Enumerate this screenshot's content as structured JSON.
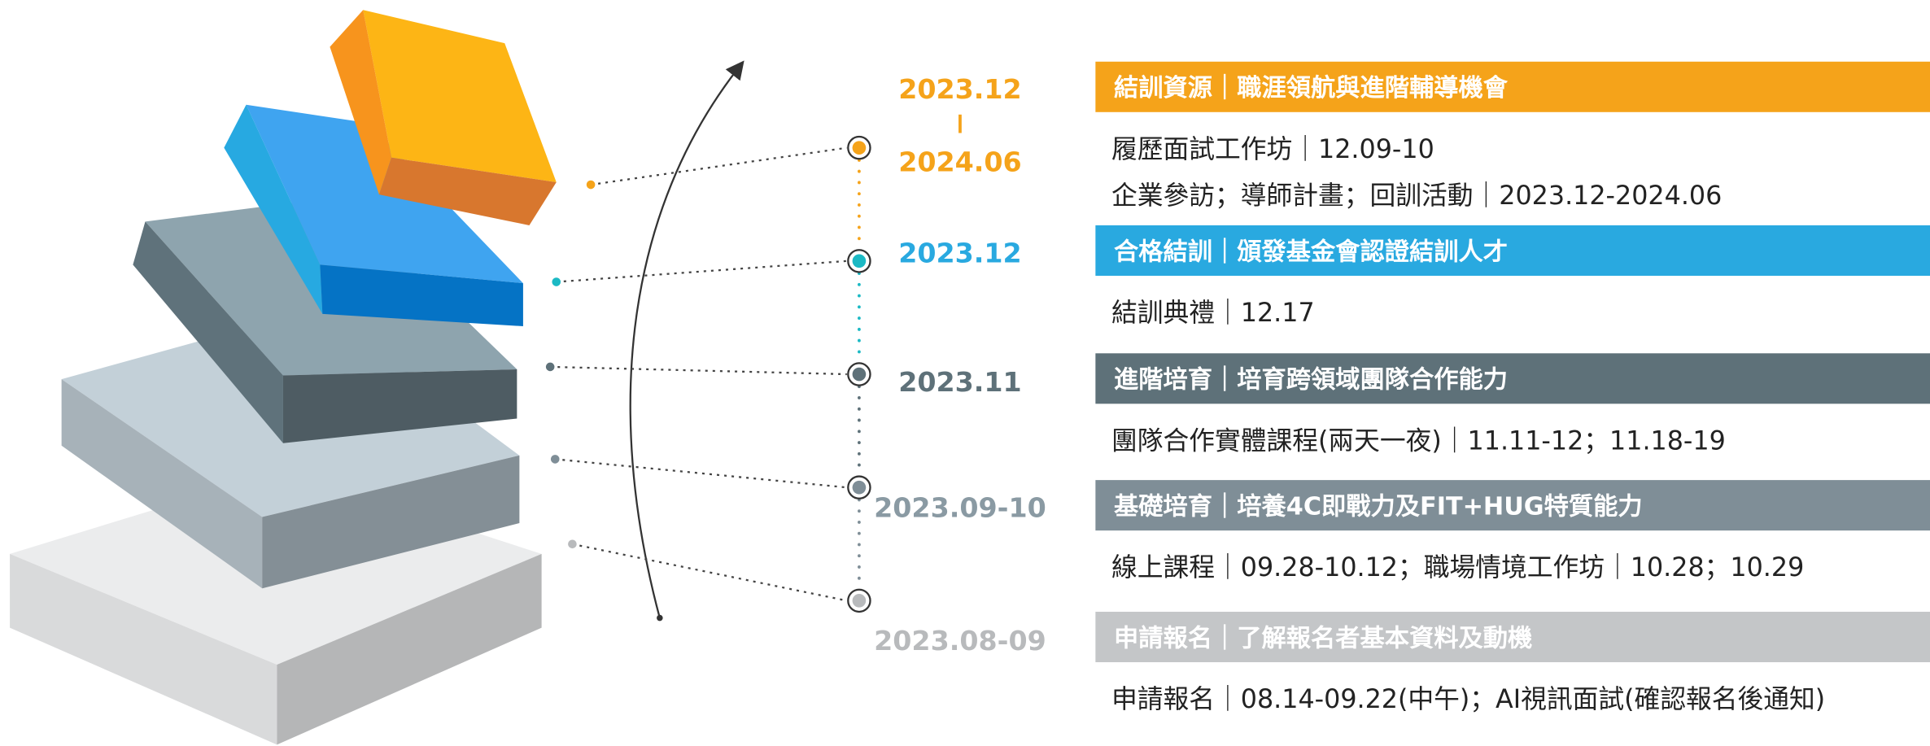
{
  "stages": [
    {
      "date_lines": [
        "2023.12",
        "2024.06"
      ],
      "header": "結訓資源｜職涯領航與進階輔導機會",
      "details": [
        "履歷面試工作坊｜12.09-10",
        "企業參訪；導師計畫；回訓活動｜2023.12-2024.06"
      ]
    },
    {
      "date_lines": [
        "2023.12"
      ],
      "header": "合格結訓｜頒發基金會認證結訓人才",
      "details": [
        "結訓典禮｜12.17"
      ]
    },
    {
      "date_lines": [
        "2023.11"
      ],
      "header": "進階培育｜培育跨領域團隊合作能力",
      "details": [
        "團隊合作實體課程(兩天一夜)｜11.11-12；11.18-19"
      ]
    },
    {
      "date_lines": [
        "2023.09-10"
      ],
      "header": "基礎培育｜培養4C即戰力及FIT+HUG特質能力",
      "details": [
        "線上課程｜09.28-10.12；職場情境工作坊｜10.28；10.29"
      ]
    },
    {
      "date_lines": [
        "2023.08-09"
      ],
      "header": "申請報名｜了解報名者基本資料及動機",
      "details": [
        "申請報名｜08.14-09.22(中午)；AI視訊面試(確認報名後通知)"
      ]
    }
  ]
}
